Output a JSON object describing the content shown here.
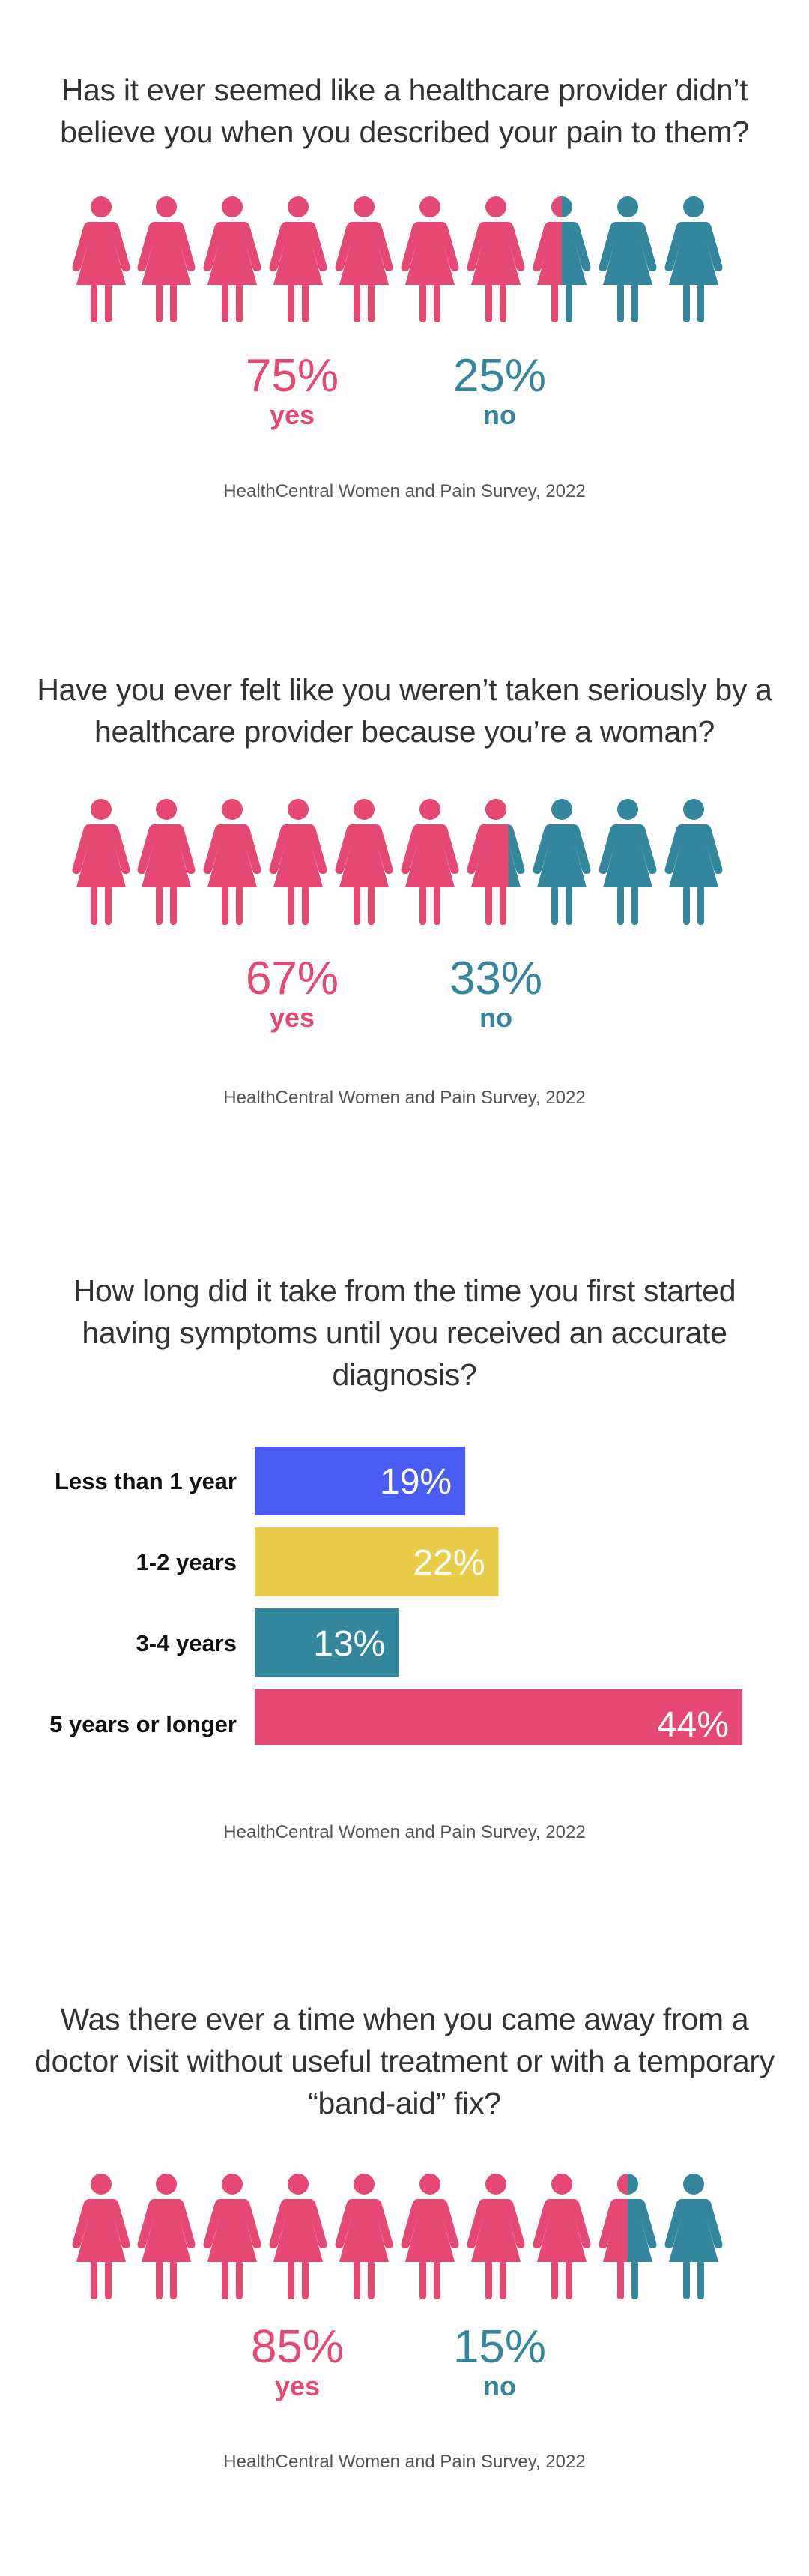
{
  "colors": {
    "yes": "#e54873",
    "no": "#33869b",
    "bar_blue": "#4a5df2",
    "bar_yellow": "#e9cd4a",
    "bar_teal": "#33869b",
    "bar_pink": "#e54873"
  },
  "icon_name": "woman-figure-icon",
  "sections": [
    {
      "question_lines": [
        "Has it ever seemed like a healthcare provider didn’t",
        "believe you when you described your pain to them?"
      ],
      "yes_pct": "75%",
      "yes_label": "yes",
      "no_pct": "25%",
      "no_label": "no",
      "source": "HealthCentral Women and Pain Survey, 2022"
    },
    {
      "question_lines": [
        "Have you ever felt like you weren’t taken seriously by a",
        "healthcare provider because you’re a woman?"
      ],
      "yes_pct": "67%",
      "yes_label": "yes",
      "no_pct": "33%",
      "no_label": "no",
      "source": "HealthCentral Women and Pain Survey, 2022"
    },
    {
      "question_lines": [
        "How long did it take from the time you first started",
        "having symptoms until you received an accurate",
        "diagnosis?"
      ],
      "source": "HealthCentral Women and Pain Survey, 2022"
    },
    {
      "question_lines": [
        "Was there ever a time when you came away from a",
        "doctor visit without useful treatment or with a temporary",
        "“band-aid” fix?"
      ],
      "yes_pct": "85%",
      "yes_label": "yes",
      "no_pct": "15%",
      "no_label": "no",
      "source": "HealthCentral Women and Pain Survey, 2022"
    }
  ],
  "chart_data": [
    {
      "type": "pictogram",
      "categories": [
        "yes",
        "no"
      ],
      "values": [
        75,
        25
      ],
      "icons_total": 10
    },
    {
      "type": "pictogram",
      "categories": [
        "yes",
        "no"
      ],
      "values": [
        67,
        33
      ],
      "icons_total": 10
    },
    {
      "type": "bar",
      "orientation": "horizontal",
      "categories": [
        "Less than 1 year",
        "1-2 years",
        "3-4 years",
        "5 years or longer"
      ],
      "values": [
        19,
        22,
        13,
        44
      ],
      "labels": [
        "19%",
        "22%",
        "13%",
        "44%"
      ],
      "colors": [
        "#4a5df2",
        "#e9cd4a",
        "#33869b",
        "#e54873"
      ]
    },
    {
      "type": "pictogram",
      "categories": [
        "yes",
        "no"
      ],
      "values": [
        85,
        15
      ],
      "icons_total": 10
    }
  ]
}
